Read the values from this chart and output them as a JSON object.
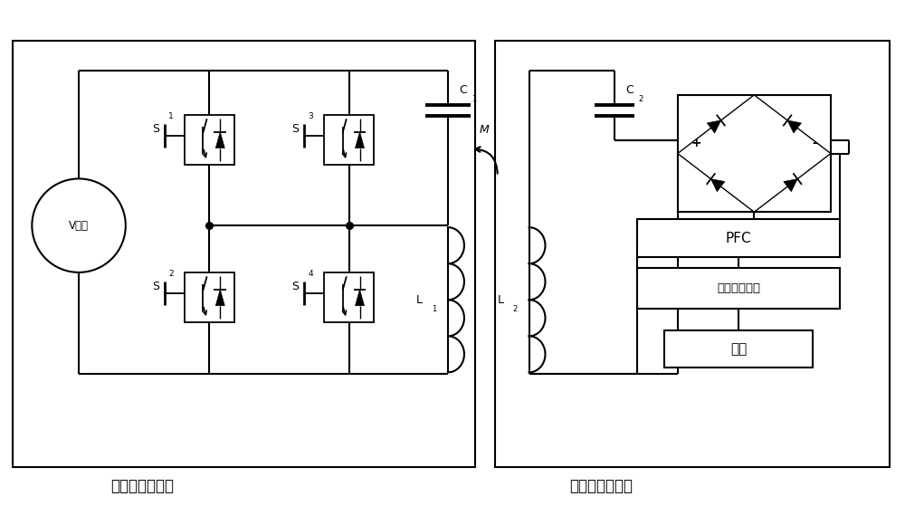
{
  "fig_width": 10.0,
  "fig_height": 5.59,
  "bg_color": "#ffffff",
  "label_left": "发射电路和线圈",
  "label_right": "接收电路和线圈",
  "source_label": "V电源",
  "pfc_label": "PFC",
  "ipm_label": "智能电源模块",
  "load_label": "负载",
  "M_label": "M"
}
